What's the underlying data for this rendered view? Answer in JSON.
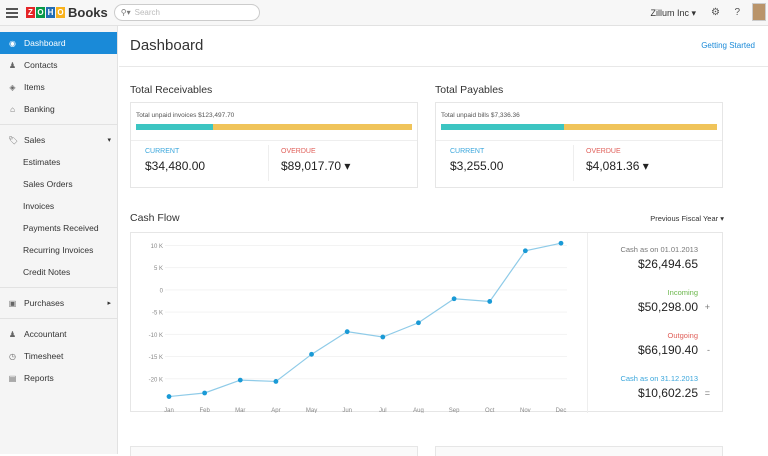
{
  "header": {
    "brand": "Books",
    "logo_letters": [
      "Z",
      "O",
      "H",
      "O"
    ],
    "logo_colors": [
      "#e42527",
      "#089949",
      "#226db4",
      "#f9b21d"
    ],
    "search_placeholder": "Search",
    "org": "Zillum Inc ▾"
  },
  "sidebar": {
    "items": [
      {
        "label": "Dashboard",
        "icon": "dashboard-icon",
        "glyph": "◉",
        "active": true
      },
      {
        "label": "Contacts",
        "icon": "contacts-icon",
        "glyph": "♟"
      },
      {
        "label": "Items",
        "icon": "items-icon",
        "glyph": "◈"
      },
      {
        "label": "Banking",
        "icon": "bank-icon",
        "glyph": "⌂"
      }
    ],
    "sales": {
      "label": "Sales",
      "chevron": "▾",
      "items": [
        "Estimates",
        "Sales Orders",
        "Invoices",
        "Payments Received",
        "Recurring Invoices",
        "Credit Notes"
      ]
    },
    "purchases": {
      "label": "Purchases",
      "chevron": "▸"
    },
    "bottom": [
      {
        "label": "Accountant",
        "glyph": "♟"
      },
      {
        "label": "Timesheet",
        "glyph": "◷"
      },
      {
        "label": "Reports",
        "glyph": "▤"
      }
    ]
  },
  "main": {
    "title": "Dashboard",
    "getting_started": "Getting Started",
    "receivables": {
      "title": "Total Receivables",
      "total": "Total unpaid invoices $123,497.70",
      "current_label": "CURRENT",
      "current": "$34,480.00",
      "overdue_label": "OVERDUE",
      "overdue": "$89,017.70 ▾",
      "current_fraction": 0.279
    },
    "payables": {
      "title": "Total Payables",
      "total": "Total unpaid bills $7,336.36",
      "current_label": "CURRENT",
      "current": "$3,255.00",
      "overdue_label": "OVERDUE",
      "overdue": "$4,081.36 ▾",
      "current_fraction": 0.444
    },
    "cashflow": {
      "title": "Cash Flow",
      "period": "Previous Fiscal Year ▾",
      "summary": [
        {
          "label": "Cash as on 01.01.2013",
          "value": "$26,494.65",
          "color": "#777",
          "sign": ""
        },
        {
          "label": "Incoming",
          "value": "$50,298.00",
          "color": "#6ab64a",
          "sign": "+"
        },
        {
          "label": "Outgoing",
          "value": "$66,190.40",
          "color": "#e0605a",
          "sign": "-"
        },
        {
          "label": "Cash as on 31.12.2013",
          "value": "$10,602.25",
          "color": "#3aa6dc",
          "sign": "="
        }
      ]
    }
  },
  "chart_data": {
    "type": "line",
    "categories": [
      "Jan",
      "Feb",
      "Mar",
      "Apr",
      "May",
      "Jun",
      "Jul",
      "Aug",
      "Sep",
      "Oct",
      "Nov",
      "Dec"
    ],
    "year": "2013",
    "values": [
      -24000,
      -23200,
      -20300,
      -20600,
      -14500,
      -9400,
      -10600,
      -7400,
      -2000,
      -2600,
      8800,
      10500
    ],
    "yticks": [
      10000,
      5000,
      0,
      -5000,
      -10000,
      -15000,
      -20000
    ],
    "ytick_labels": [
      "10 K",
      "5 K",
      "0",
      "-5 K",
      "-10 K",
      "-15 K",
      "-20 K"
    ],
    "ylim": [
      -25000,
      11000
    ],
    "color": "#1a9ad6",
    "grid": true
  }
}
